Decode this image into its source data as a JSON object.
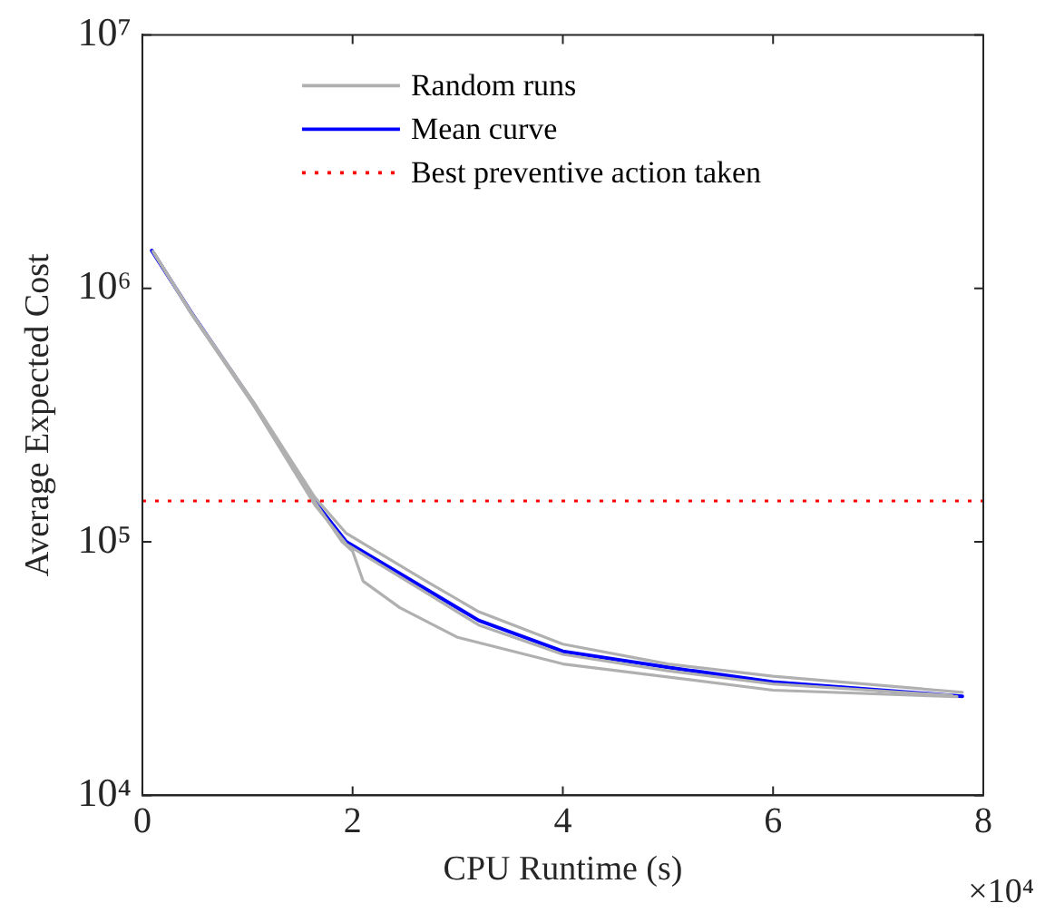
{
  "chart_data": {
    "type": "line",
    "xlabel": "CPU Runtime (s)",
    "ylabel": "Average Expected Cost",
    "log": "y",
    "grid": false,
    "legend": "top",
    "marker": "none",
    "line_style": "solid",
    "xlim": [
      0,
      8
    ],
    "xticks": [
      0,
      2,
      4,
      6,
      8
    ],
    "ylim": [
      10000,
      10000000
    ],
    "yticks": [
      {
        "value": 10000,
        "label": "10⁴"
      },
      {
        "value": 100000,
        "label": "10⁵"
      },
      {
        "value": 1000000,
        "label": "10⁶"
      },
      {
        "value": 10000000,
        "label": "10⁷"
      }
    ],
    "series": [
      {
        "name": "Random runs",
        "color": "#b0b0b0",
        "x": [
          0.1,
          0.46,
          1.06,
          1.64,
          1.94,
          2.7,
          3.2,
          4,
          5,
          6,
          7.8
        ],
        "values": [
          1400000,
          810000,
          355000,
          150000,
          108000,
          70000,
          53000,
          39500,
          33000,
          29500,
          25500
        ]
      },
      {
        "color": "#b0b0b0",
        "x": [
          0.11,
          0.46,
          1.06,
          1.64,
          1.9,
          2,
          2.1,
          2.45,
          3,
          4,
          6,
          7.75
        ],
        "values": [
          1380000,
          810000,
          350000,
          144000,
          100000,
          92000,
          70000,
          55000,
          42000,
          33000,
          26000,
          24500
        ]
      },
      {
        "color": "#b0b0b0",
        "x": [
          0.12,
          0.46,
          1.06,
          1.64,
          1.94,
          2.7,
          3.2,
          4,
          5,
          6,
          7.7
        ],
        "values": [
          1360000,
          800000,
          345000,
          140000,
          98000,
          63000,
          47000,
          36000,
          31000,
          27500,
          24800
        ]
      },
      {
        "name": "Mean curve",
        "color": "#0000ff",
        "x": [
          0.09,
          0.46,
          1.06,
          1.64,
          1.94,
          2.7,
          3.2,
          4,
          5,
          6,
          7.8
        ],
        "values": [
          1410000,
          810000,
          350000,
          144000,
          100000,
          65000,
          49000,
          37000,
          32000,
          28000,
          24600
        ]
      }
    ],
    "ref_lines": [
      {
        "axis": "y",
        "value": 145000,
        "label": "Best preventive action taken",
        "color": "#ff0000",
        "line_style": "dotted"
      }
    ],
    "annotations": [
      "×10⁴"
    ]
  }
}
